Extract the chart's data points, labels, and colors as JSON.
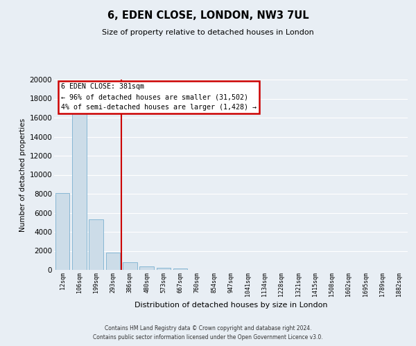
{
  "title": "6, EDEN CLOSE, LONDON, NW3 7UL",
  "subtitle": "Size of property relative to detached houses in London",
  "xlabel": "Distribution of detached houses by size in London",
  "ylabel": "Number of detached properties",
  "categories": [
    "12sqm",
    "106sqm",
    "199sqm",
    "293sqm",
    "386sqm",
    "480sqm",
    "573sqm",
    "667sqm",
    "760sqm",
    "854sqm",
    "947sqm",
    "1041sqm",
    "1134sqm",
    "1228sqm",
    "1321sqm",
    "1415sqm",
    "1508sqm",
    "1602sqm",
    "1695sqm",
    "1789sqm",
    "1882sqm"
  ],
  "values": [
    8100,
    16600,
    5300,
    1850,
    800,
    350,
    250,
    180,
    0,
    0,
    0,
    0,
    0,
    0,
    0,
    0,
    0,
    0,
    0,
    0,
    0
  ],
  "bar_color": "#ccdce8",
  "bar_edge_color": "#7ab0d0",
  "vline_color": "#cc0000",
  "vline_pos": 3.5,
  "annotation_title": "6 EDEN CLOSE: 381sqm",
  "annotation_line1": "← 96% of detached houses are smaller (31,502)",
  "annotation_line2": "4% of semi-detached houses are larger (1,428) →",
  "annotation_box_color": "#cc0000",
  "ylim": [
    0,
    20000
  ],
  "yticks": [
    0,
    2000,
    4000,
    6000,
    8000,
    10000,
    12000,
    14000,
    16000,
    18000,
    20000
  ],
  "background_color": "#e8eef4",
  "grid_color": "#ffffff",
  "footer_line1": "Contains HM Land Registry data © Crown copyright and database right 2024.",
  "footer_line2": "Contains public sector information licensed under the Open Government Licence v3.0."
}
